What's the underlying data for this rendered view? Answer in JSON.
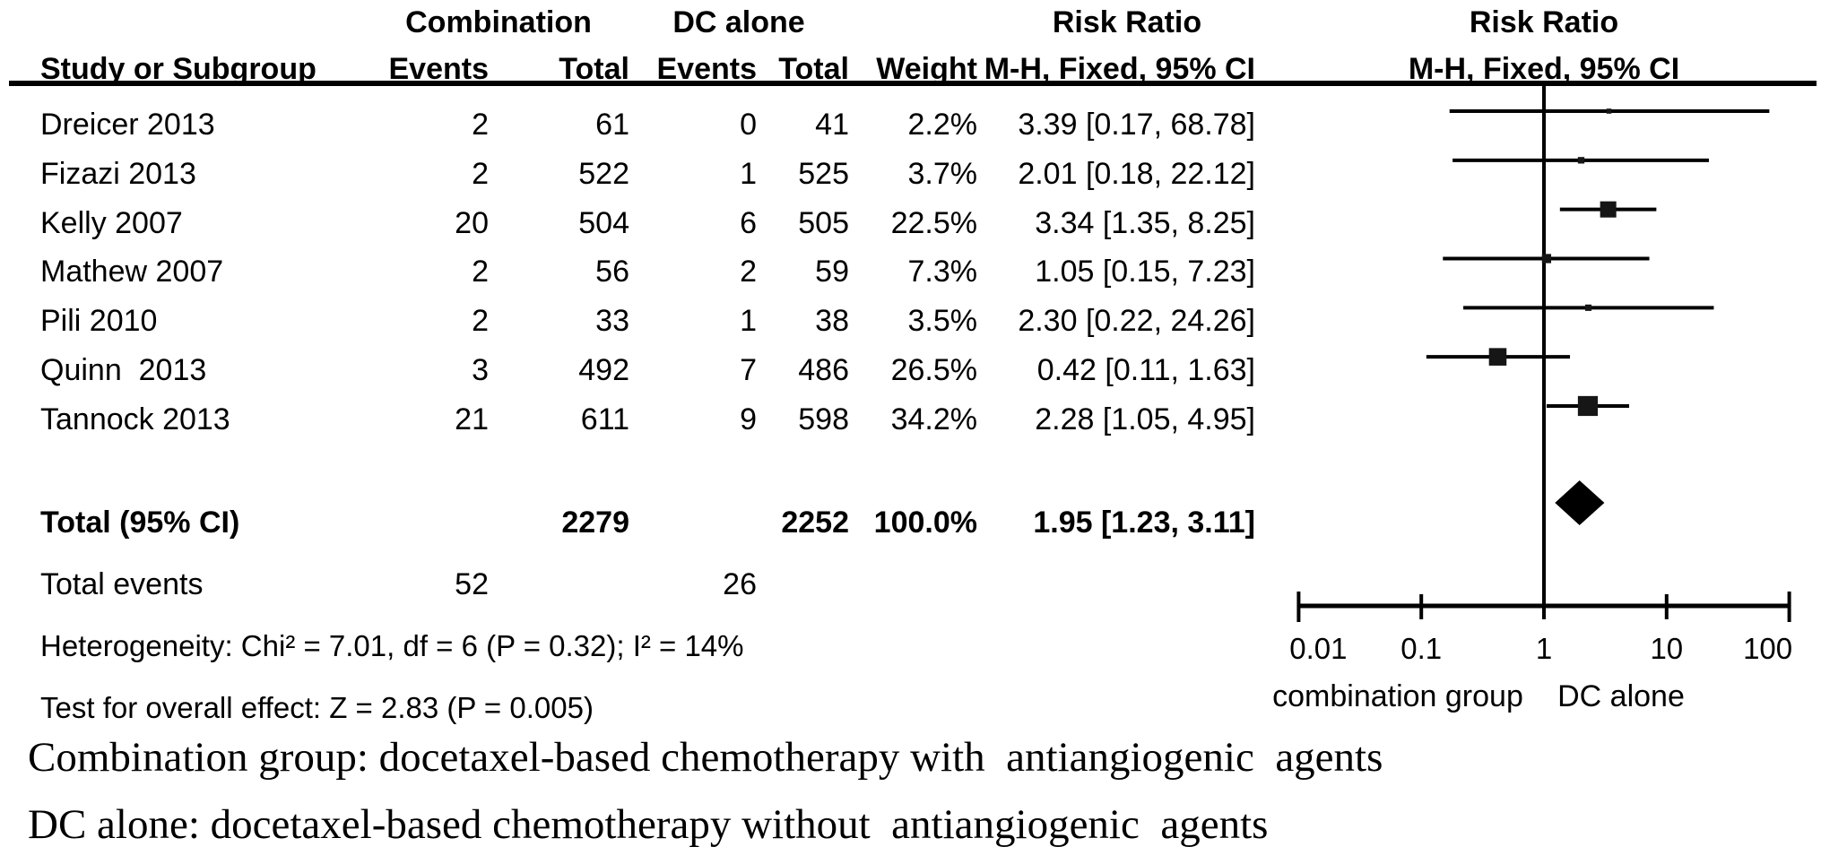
{
  "figure": {
    "group_headers": {
      "combination": "Combination",
      "dc_alone": "DC alone",
      "risk_ratio_left": "Risk Ratio",
      "risk_ratio_right": "Risk Ratio"
    },
    "columns": {
      "study": "Study or Subgroup",
      "events1": "Events",
      "total1": "Total",
      "events2": "Events",
      "total2": "Total",
      "weight": "Weight",
      "mh_fixed_ci_left": "M-H, Fixed, 95% CI",
      "mh_fixed_ci_right": "M-H, Fixed, 95% CI"
    },
    "studies": [
      {
        "name": "Dreicer 2013",
        "events1": "2",
        "total1": "61",
        "events2": "0",
        "total2": "41",
        "weight": "2.2%",
        "ci_label": "3.39 [0.17, 68.78]"
      },
      {
        "name": "Fizazi 2013",
        "events1": "2",
        "total1": "522",
        "events2": "1",
        "total2": "525",
        "weight": "3.7%",
        "ci_label": "2.01 [0.18, 22.12]"
      },
      {
        "name": "Kelly 2007",
        "events1": "20",
        "total1": "504",
        "events2": "6",
        "total2": "505",
        "weight": "22.5%",
        "ci_label": "3.34 [1.35, 8.25]"
      },
      {
        "name": "Mathew 2007",
        "events1": "2",
        "total1": "56",
        "events2": "2",
        "total2": "59",
        "weight": "7.3%",
        "ci_label": "1.05 [0.15, 7.23]"
      },
      {
        "name": "Pili 2010",
        "events1": "2",
        "total1": "33",
        "events2": "1",
        "total2": "38",
        "weight": "3.5%",
        "ci_label": "2.30 [0.22, 24.26]"
      },
      {
        "name": "Quinn  2013",
        "events1": "3",
        "total1": "492",
        "events2": "7",
        "total2": "486",
        "weight": "26.5%",
        "ci_label": "0.42 [0.11, 1.63]"
      },
      {
        "name": "Tannock 2013",
        "events1": "21",
        "total1": "611",
        "events2": "9",
        "total2": "598",
        "weight": "34.2%",
        "ci_label": "2.28 [1.05, 4.95]"
      }
    ],
    "total_row": {
      "label": "Total (95% CI)",
      "total1": "2279",
      "total2": "2252",
      "weight": "100.0%",
      "ci_label": "1.95 [1.23, 3.11]"
    },
    "total_events_row": {
      "label": "Total events",
      "events1": "52",
      "events2": "26"
    },
    "stats": {
      "heterogeneity": "Heterogeneity: Chi² = 7.01, df = 6 (P = 0.32); I² = 14%",
      "overall_effect": "Test for overall effect: Z = 2.83 (P = 0.005)"
    },
    "axis": {
      "tick_labels": [
        "0.01",
        "0.1",
        "1",
        "10",
        "100"
      ],
      "left_label": "combination group",
      "right_label": "DC alone"
    },
    "captions": [
      "Combination group: docetaxel-based chemotherapy with  antiangiogenic  agents",
      "DC alone: docetaxel-based chemotherapy without  antiangiogenic  agents"
    ]
  },
  "chart_data": {
    "type": "forest",
    "effect_measure": "Risk Ratio",
    "method": "M-H, Fixed, 95% CI",
    "x_scale": "log10",
    "x_range": [
      0.01,
      100
    ],
    "x_ticks": [
      0.01,
      0.1,
      1,
      10,
      100
    ],
    "x_tick_labels": [
      "0.01",
      "0.1",
      "1",
      "10",
      "100"
    ],
    "null_line": 1,
    "favours_left_label": "combination group",
    "favours_right_label": "DC alone",
    "studies": [
      {
        "name": "Dreicer 2013",
        "rr": 3.39,
        "ci_low": 0.17,
        "ci_high": 68.78,
        "weight_pct": 2.2
      },
      {
        "name": "Fizazi 2013",
        "rr": 2.01,
        "ci_low": 0.18,
        "ci_high": 22.12,
        "weight_pct": 3.7
      },
      {
        "name": "Kelly 2007",
        "rr": 3.34,
        "ci_low": 1.35,
        "ci_high": 8.25,
        "weight_pct": 22.5
      },
      {
        "name": "Mathew 2007",
        "rr": 1.05,
        "ci_low": 0.15,
        "ci_high": 7.23,
        "weight_pct": 7.3
      },
      {
        "name": "Pili 2010",
        "rr": 2.3,
        "ci_low": 0.22,
        "ci_high": 24.26,
        "weight_pct": 3.5
      },
      {
        "name": "Quinn 2013",
        "rr": 0.42,
        "ci_low": 0.11,
        "ci_high": 1.63,
        "weight_pct": 26.5
      },
      {
        "name": "Tannock 2013",
        "rr": 2.28,
        "ci_low": 1.05,
        "ci_high": 4.95,
        "weight_pct": 34.2
      }
    ],
    "total": {
      "label": "Total (95% CI)",
      "rr": 1.95,
      "ci_low": 1.23,
      "ci_high": 3.11,
      "weight_pct": 100.0
    },
    "heterogeneity": {
      "chi2": 7.01,
      "df": 6,
      "p": 0.32,
      "i2_pct": 14
    },
    "overall_effect": {
      "z": 2.83,
      "p": 0.005
    },
    "total_events": {
      "combination": 52,
      "dc_alone": 26
    },
    "totals": {
      "combination_n": 2279,
      "dc_alone_n": 2252
    }
  }
}
